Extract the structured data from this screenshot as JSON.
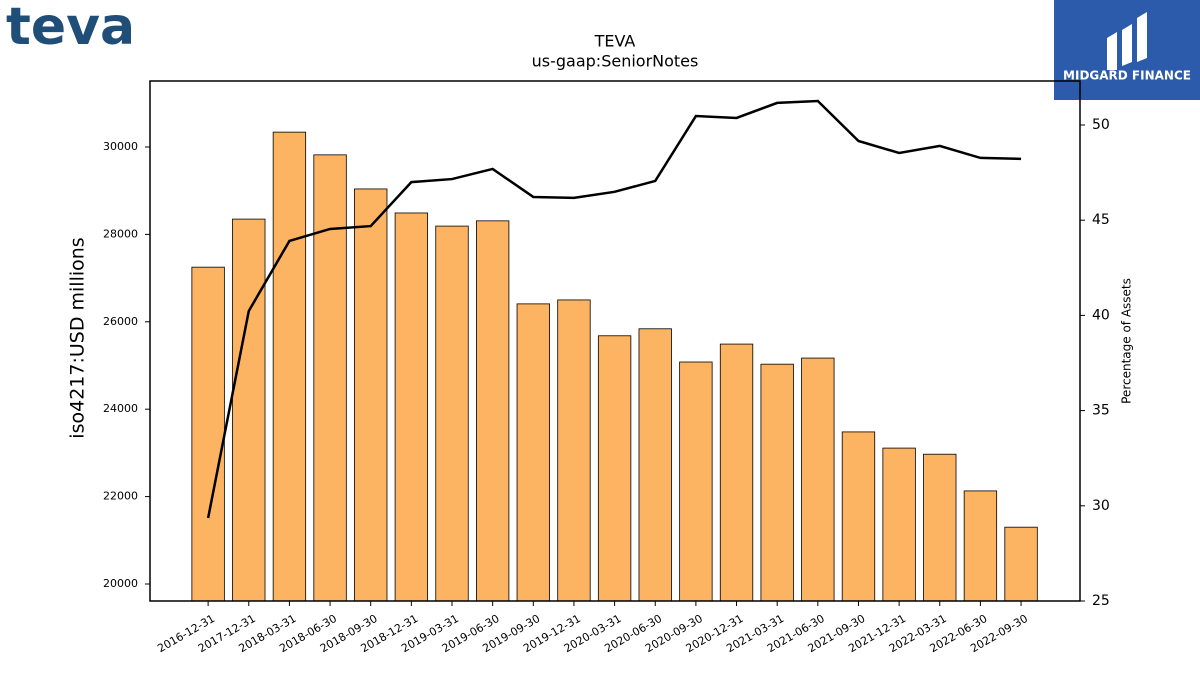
{
  "branding": {
    "left_logo": "teva",
    "right_logo": "MIDGARD FINANCE"
  },
  "chart_data": {
    "type": "bar",
    "title": "TEVA",
    "subtitle": "us-gaap:SeniorNotes",
    "ylabel": "iso4217:USD  millions",
    "y2label": "Percentage of Assets",
    "categories": [
      "2016-12-31",
      "2017-12-31",
      "2018-03-31",
      "2018-06-30",
      "2018-09-30",
      "2018-12-31",
      "2019-03-31",
      "2019-06-30",
      "2019-09-30",
      "2019-12-31",
      "2020-03-31",
      "2020-06-30",
      "2020-09-30",
      "2020-12-31",
      "2021-03-31",
      "2021-06-30",
      "2021-09-30",
      "2021-12-31",
      "2022-03-31",
      "2022-06-30",
      "2022-09-30"
    ],
    "series": [
      {
        "type": "bar",
        "color": "#fdb462",
        "values": [
          27250,
          28350,
          30340,
          29820,
          29040,
          28490,
          28190,
          28310,
          26410,
          26500,
          25680,
          25840,
          25080,
          25490,
          25030,
          25170,
          23480,
          23110,
          22970,
          22130,
          21300
        ]
      },
      {
        "type": "line",
        "axis": "y2",
        "color": "#000000",
        "values": [
          29.36,
          40.23,
          43.91,
          44.54,
          44.69,
          47.0,
          47.16,
          47.69,
          46.22,
          46.17,
          46.49,
          47.06,
          50.47,
          50.37,
          51.16,
          51.26,
          49.16,
          48.53,
          48.9,
          48.27,
          48.22
        ]
      }
    ],
    "ylim": [
      19611,
      31510
    ],
    "yticks": [
      20000,
      22000,
      24000,
      26000,
      28000,
      30000
    ],
    "y2lim": [
      25,
      52.31
    ],
    "y2ticks": [
      25,
      30,
      35,
      40,
      45,
      50
    ]
  }
}
